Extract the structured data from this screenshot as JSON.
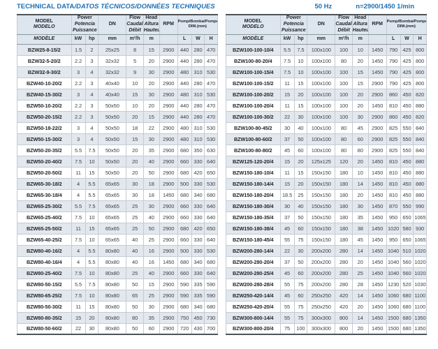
{
  "title": {
    "main": "TECHNICAL DATA",
    "rest": "/DATOS TÉCNICOS/DONNÉES TECHNIQUES"
  },
  "right_header": {
    "frequency": "50 Hz",
    "speed": "n=2900/1450 1/min"
  },
  "columns": {
    "model": {
      "l1": "MODEL",
      "l2": "MODELO",
      "l3": "MODÈLE"
    },
    "power": {
      "l1": "Power",
      "l2": "Potencia",
      "l3": "Puissance",
      "u1": "kW",
      "u2": "hp"
    },
    "dn": {
      "l1": "DN",
      "u": "mm"
    },
    "flow": {
      "l1": "Flow",
      "l2": "Caudal",
      "l3": "Débit",
      "u": "m³/h"
    },
    "head": {
      "l1": "Head",
      "l2": "Altura",
      "l3": "Hauteur",
      "u": "m"
    },
    "rpm": {
      "l1": "RPM",
      "u": ""
    },
    "dim": {
      "l1": "Pump/Bomba/Pompe",
      "l2": "DIM.(mm)",
      "u1": "L",
      "u2": "W",
      "u3": "H"
    }
  },
  "left_rows": [
    [
      "BZW25-8-15/2",
      "1.5",
      "2",
      "25x25",
      "8",
      "15",
      "2900",
      "440",
      "280",
      "470"
    ],
    [
      "BZW32-5-20/2",
      "2.2",
      "3",
      "32x32",
      "5",
      "20",
      "2900",
      "440",
      "280",
      "470"
    ],
    [
      "BZW32-9-30/2",
      "3",
      "4",
      "32x32",
      "9",
      "30",
      "2900",
      "480",
      "310",
      "530"
    ],
    [
      "BZW40-10-20/2",
      "2.2",
      "3",
      "40x40",
      "10",
      "20",
      "2900",
      "440",
      "280",
      "470"
    ],
    [
      "BZW40-15-30/2",
      "3",
      "4",
      "40x40",
      "15",
      "30",
      "2900",
      "480",
      "310",
      "530"
    ],
    [
      "BZW50-10-20/2",
      "2.2",
      "3",
      "50x50",
      "10",
      "20",
      "2900",
      "440",
      "280",
      "470"
    ],
    [
      "BZW50-20-15/2",
      "2.2",
      "3",
      "50x50",
      "20",
      "15",
      "2900",
      "440",
      "280",
      "470"
    ],
    [
      "BZW50-18-22/2",
      "3",
      "4",
      "50x50",
      "18",
      "22",
      "2900",
      "480",
      "310",
      "530"
    ],
    [
      "BZW50-15-30/2",
      "3",
      "4",
      "50x50",
      "15",
      "30",
      "2900",
      "480",
      "310",
      "530"
    ],
    [
      "BZW50-20-35/2",
      "5.5",
      "7.5",
      "50x50",
      "20",
      "35",
      "2900",
      "680",
      "350",
      "630"
    ],
    [
      "BZW50-20-40/2",
      "7.5",
      "10",
      "50x50",
      "20",
      "40",
      "2900",
      "660",
      "330",
      "640"
    ],
    [
      "BZW50-20-50/2",
      "11",
      "15",
      "50x50",
      "20",
      "50",
      "2900",
      "680",
      "420",
      "650"
    ],
    [
      "BZW65-30-18/2",
      "4",
      "5.5",
      "65x65",
      "30",
      "18",
      "2900",
      "500",
      "330",
      "530"
    ],
    [
      "BZW65-30-18/4",
      "4",
      "5.5",
      "65x65",
      "30",
      "18",
      "1450",
      "680",
      "340",
      "680"
    ],
    [
      "BZW65-25-30/2",
      "5.5",
      "7.5",
      "65x65",
      "25",
      "30",
      "2900",
      "660",
      "330",
      "640"
    ],
    [
      "BZW65-25-40/2",
      "7.5",
      "10",
      "65x65",
      "25",
      "40",
      "2900",
      "660",
      "330",
      "640"
    ],
    [
      "BZW65-25-50/2",
      "11",
      "15",
      "65x65",
      "25",
      "50",
      "2900",
      "680",
      "420",
      "650"
    ],
    [
      "BZW65-40-25/2",
      "7.5",
      "10",
      "65x65",
      "40",
      "25",
      "2900",
      "660",
      "330",
      "640"
    ],
    [
      "BZW80-40-16/2",
      "4",
      "5.5",
      "80x80",
      "40",
      "16",
      "2900",
      "500",
      "330",
      "530"
    ],
    [
      "BZW80-40-16/4",
      "4",
      "5.5",
      "80x80",
      "40",
      "16",
      "1450",
      "680",
      "340",
      "680"
    ],
    [
      "BZW80-25-40/2",
      "7.5",
      "10",
      "80x80",
      "25",
      "40",
      "2900",
      "660",
      "330",
      "640"
    ],
    [
      "BZW80-50-15/2",
      "5.5",
      "7.5",
      "80x80",
      "50",
      "15",
      "2900",
      "590",
      "335",
      "590"
    ],
    [
      "BZW80-65-25/2",
      "7.5",
      "10",
      "80x80",
      "65",
      "25",
      "2900",
      "590",
      "335",
      "590"
    ],
    [
      "BZW80-50-30/2",
      "11",
      "15",
      "80x80",
      "50",
      "30",
      "2900",
      "680",
      "340",
      "680"
    ],
    [
      "BZW80-80-35/2",
      "15",
      "20",
      "80x80",
      "80",
      "35",
      "2900",
      "750",
      "450",
      "730"
    ],
    [
      "BZW80-50-60/2",
      "22",
      "30",
      "80x80",
      "50",
      "60",
      "2900",
      "720",
      "430",
      "700"
    ]
  ],
  "right_rows": [
    [
      "BZW100-100-10/4",
      "5.5",
      "7.5",
      "100x100",
      "100",
      "10",
      "1450",
      "790",
      "425",
      "800"
    ],
    [
      "BZW100-80-20/4",
      "7.5",
      "10",
      "100x100",
      "80",
      "20",
      "1450",
      "790",
      "425",
      "800"
    ],
    [
      "BZW100-100-15/4",
      "7.5",
      "10",
      "100x100",
      "100",
      "15",
      "1450",
      "790",
      "425",
      "800"
    ],
    [
      "BZW100-100-15/2",
      "11",
      "15",
      "100x100",
      "100",
      "15",
      "2900",
      "790",
      "425",
      "800"
    ],
    [
      "BZW100-100-20/2",
      "15",
      "20",
      "100x100",
      "100",
      "20",
      "2900",
      "860",
      "450",
      "820"
    ],
    [
      "BZW100-100-20/4",
      "11",
      "15",
      "100x100",
      "100",
      "20",
      "1450",
      "810",
      "450",
      "880"
    ],
    [
      "BZW100-100-30/2",
      "22",
      "30",
      "100x100",
      "100",
      "30",
      "2900",
      "860",
      "450",
      "820"
    ],
    [
      "BZW100-80-45/2",
      "30",
      "40",
      "100x100",
      "80",
      "45",
      "2900",
      "825",
      "550",
      "840"
    ],
    [
      "BZW100-80-60/2",
      "37",
      "50",
      "100x100",
      "80",
      "60",
      "2900",
      "825",
      "550",
      "840"
    ],
    [
      "BZW100-80-80/2",
      "45",
      "60",
      "100x100",
      "80",
      "80",
      "2900",
      "825",
      "550",
      "840"
    ],
    [
      "BZW125-120-20/4",
      "15",
      "20",
      "125x125",
      "120",
      "20",
      "1450",
      "810",
      "450",
      "880"
    ],
    [
      "BZW150-180-10/4",
      "11",
      "15",
      "150x150",
      "180",
      "10",
      "1450",
      "810",
      "450",
      "880"
    ],
    [
      "BZW150-180-14/4",
      "15",
      "20",
      "150x150",
      "180",
      "14",
      "1450",
      "810",
      "450",
      "880"
    ],
    [
      "BZW150-180-20/4",
      "18.5",
      "25",
      "150x150",
      "180",
      "20",
      "1450",
      "810",
      "450",
      "880"
    ],
    [
      "BZW150-180-30/4",
      "30",
      "40",
      "150x150",
      "180",
      "30",
      "1450",
      "870",
      "550",
      "990"
    ],
    [
      "BZW150-180-35/4",
      "37",
      "50",
      "150x150",
      "180",
      "35",
      "1450",
      "950",
      "650",
      "1065"
    ],
    [
      "BZW150-180-38/4",
      "45",
      "60",
      "150x150",
      "180",
      "38",
      "1450",
      "1020",
      "580",
      "930"
    ],
    [
      "BZW150-180-45/4",
      "55",
      "75",
      "150x150",
      "180",
      "45",
      "1450",
      "950",
      "650",
      "1065"
    ],
    [
      "BZW200-280-14/4",
      "22",
      "30",
      "200x200",
      "280",
      "14",
      "1450",
      "1040",
      "510",
      "1020"
    ],
    [
      "BZW200-280-20/4",
      "37",
      "50",
      "200x200",
      "280",
      "20",
      "1450",
      "1040",
      "560",
      "1020"
    ],
    [
      "BZW200-280-25/4",
      "45",
      "60",
      "200x200",
      "280",
      "25",
      "1450",
      "1040",
      "560",
      "1020"
    ],
    [
      "BZW200-280-28/4",
      "55",
      "75",
      "200x200",
      "280",
      "28",
      "1450",
      "1230",
      "520",
      "1030"
    ],
    [
      "BZW250-420-14/4",
      "45",
      "60",
      "250x250",
      "420",
      "14",
      "1450",
      "1060",
      "680",
      "1100"
    ],
    [
      "BZW250-420-20/4",
      "55",
      "75",
      "250x250",
      "420",
      "20",
      "1450",
      "1060",
      "680",
      "1100"
    ],
    [
      "BZW300-800-14/4",
      "55",
      "75",
      "300x300",
      "800",
      "14",
      "1450",
      "1500",
      "680",
      "1350"
    ],
    [
      "BZW300-800-20/4",
      "75",
      "100",
      "300x300",
      "800",
      "20",
      "1450",
      "1500",
      "680",
      "1350"
    ]
  ],
  "colors": {
    "accent_blue": "#1c6fb4",
    "header_bg": "#dde6ef",
    "row_alt_bg": "#e3e8ee"
  }
}
